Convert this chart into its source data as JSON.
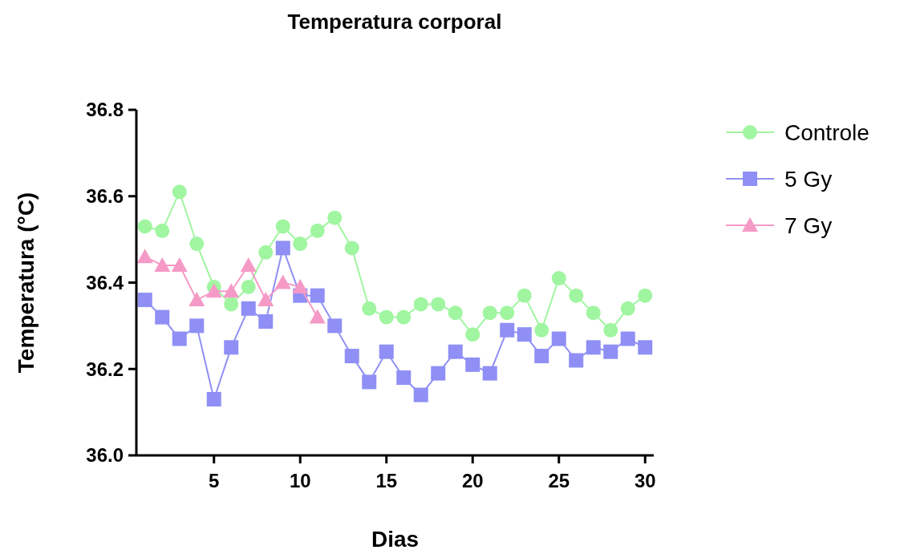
{
  "chart_data": {
    "type": "line",
    "title": "Temperatura corporal",
    "xlabel": "Dias",
    "ylabel": "Temperatura (°C)",
    "xlim": [
      0.5,
      30.5
    ],
    "xticks": [
      5,
      10,
      15,
      20,
      25,
      30
    ],
    "ylim": [
      36.0,
      36.8
    ],
    "yticks": [
      {
        "value": 36.0,
        "label": "36.0"
      },
      {
        "value": 36.2,
        "label": "36.2"
      },
      {
        "value": 36.4,
        "label": "36.4"
      },
      {
        "value": 36.6,
        "label": "36.6"
      },
      {
        "value": 36.8,
        "label": "36.8"
      }
    ],
    "grid": false,
    "legend": "right",
    "line_style": "solid",
    "x": [
      1,
      2,
      3,
      4,
      5,
      6,
      7,
      8,
      9,
      10,
      11,
      12,
      13,
      14,
      15,
      16,
      17,
      18,
      19,
      20,
      21,
      22,
      23,
      24,
      25,
      26,
      27,
      28,
      29,
      30
    ],
    "series": [
      {
        "name": "Controle",
        "color": "#a0f5a0",
        "marker": "circle",
        "values": [
          36.53,
          36.52,
          36.61,
          36.49,
          36.39,
          36.35,
          36.39,
          36.47,
          36.53,
          36.49,
          36.52,
          36.55,
          36.48,
          36.34,
          36.32,
          36.32,
          36.35,
          36.35,
          36.33,
          36.28,
          36.33,
          36.33,
          36.37,
          36.29,
          36.41,
          36.37,
          36.33,
          36.29,
          36.34,
          36.37
        ]
      },
      {
        "name": "5 Gy",
        "color": "#8f8ff5",
        "marker": "square",
        "values": [
          36.36,
          36.32,
          36.27,
          36.3,
          36.13,
          36.25,
          36.34,
          36.31,
          36.48,
          36.37,
          36.37,
          36.3,
          36.23,
          36.17,
          36.24,
          36.18,
          36.14,
          36.19,
          36.24,
          36.21,
          36.19,
          36.29,
          36.28,
          36.23,
          36.27,
          36.22,
          36.25,
          36.24,
          36.27,
          36.25
        ]
      },
      {
        "name": "7 Gy",
        "color": "#f59ac6",
        "marker": "triangle",
        "x": [
          1,
          2,
          3,
          4,
          5,
          6,
          7,
          8,
          9,
          10,
          11
        ],
        "values": [
          36.46,
          36.44,
          36.44,
          36.36,
          36.38,
          36.38,
          36.44,
          36.36,
          36.4,
          36.39,
          36.32
        ]
      }
    ]
  }
}
